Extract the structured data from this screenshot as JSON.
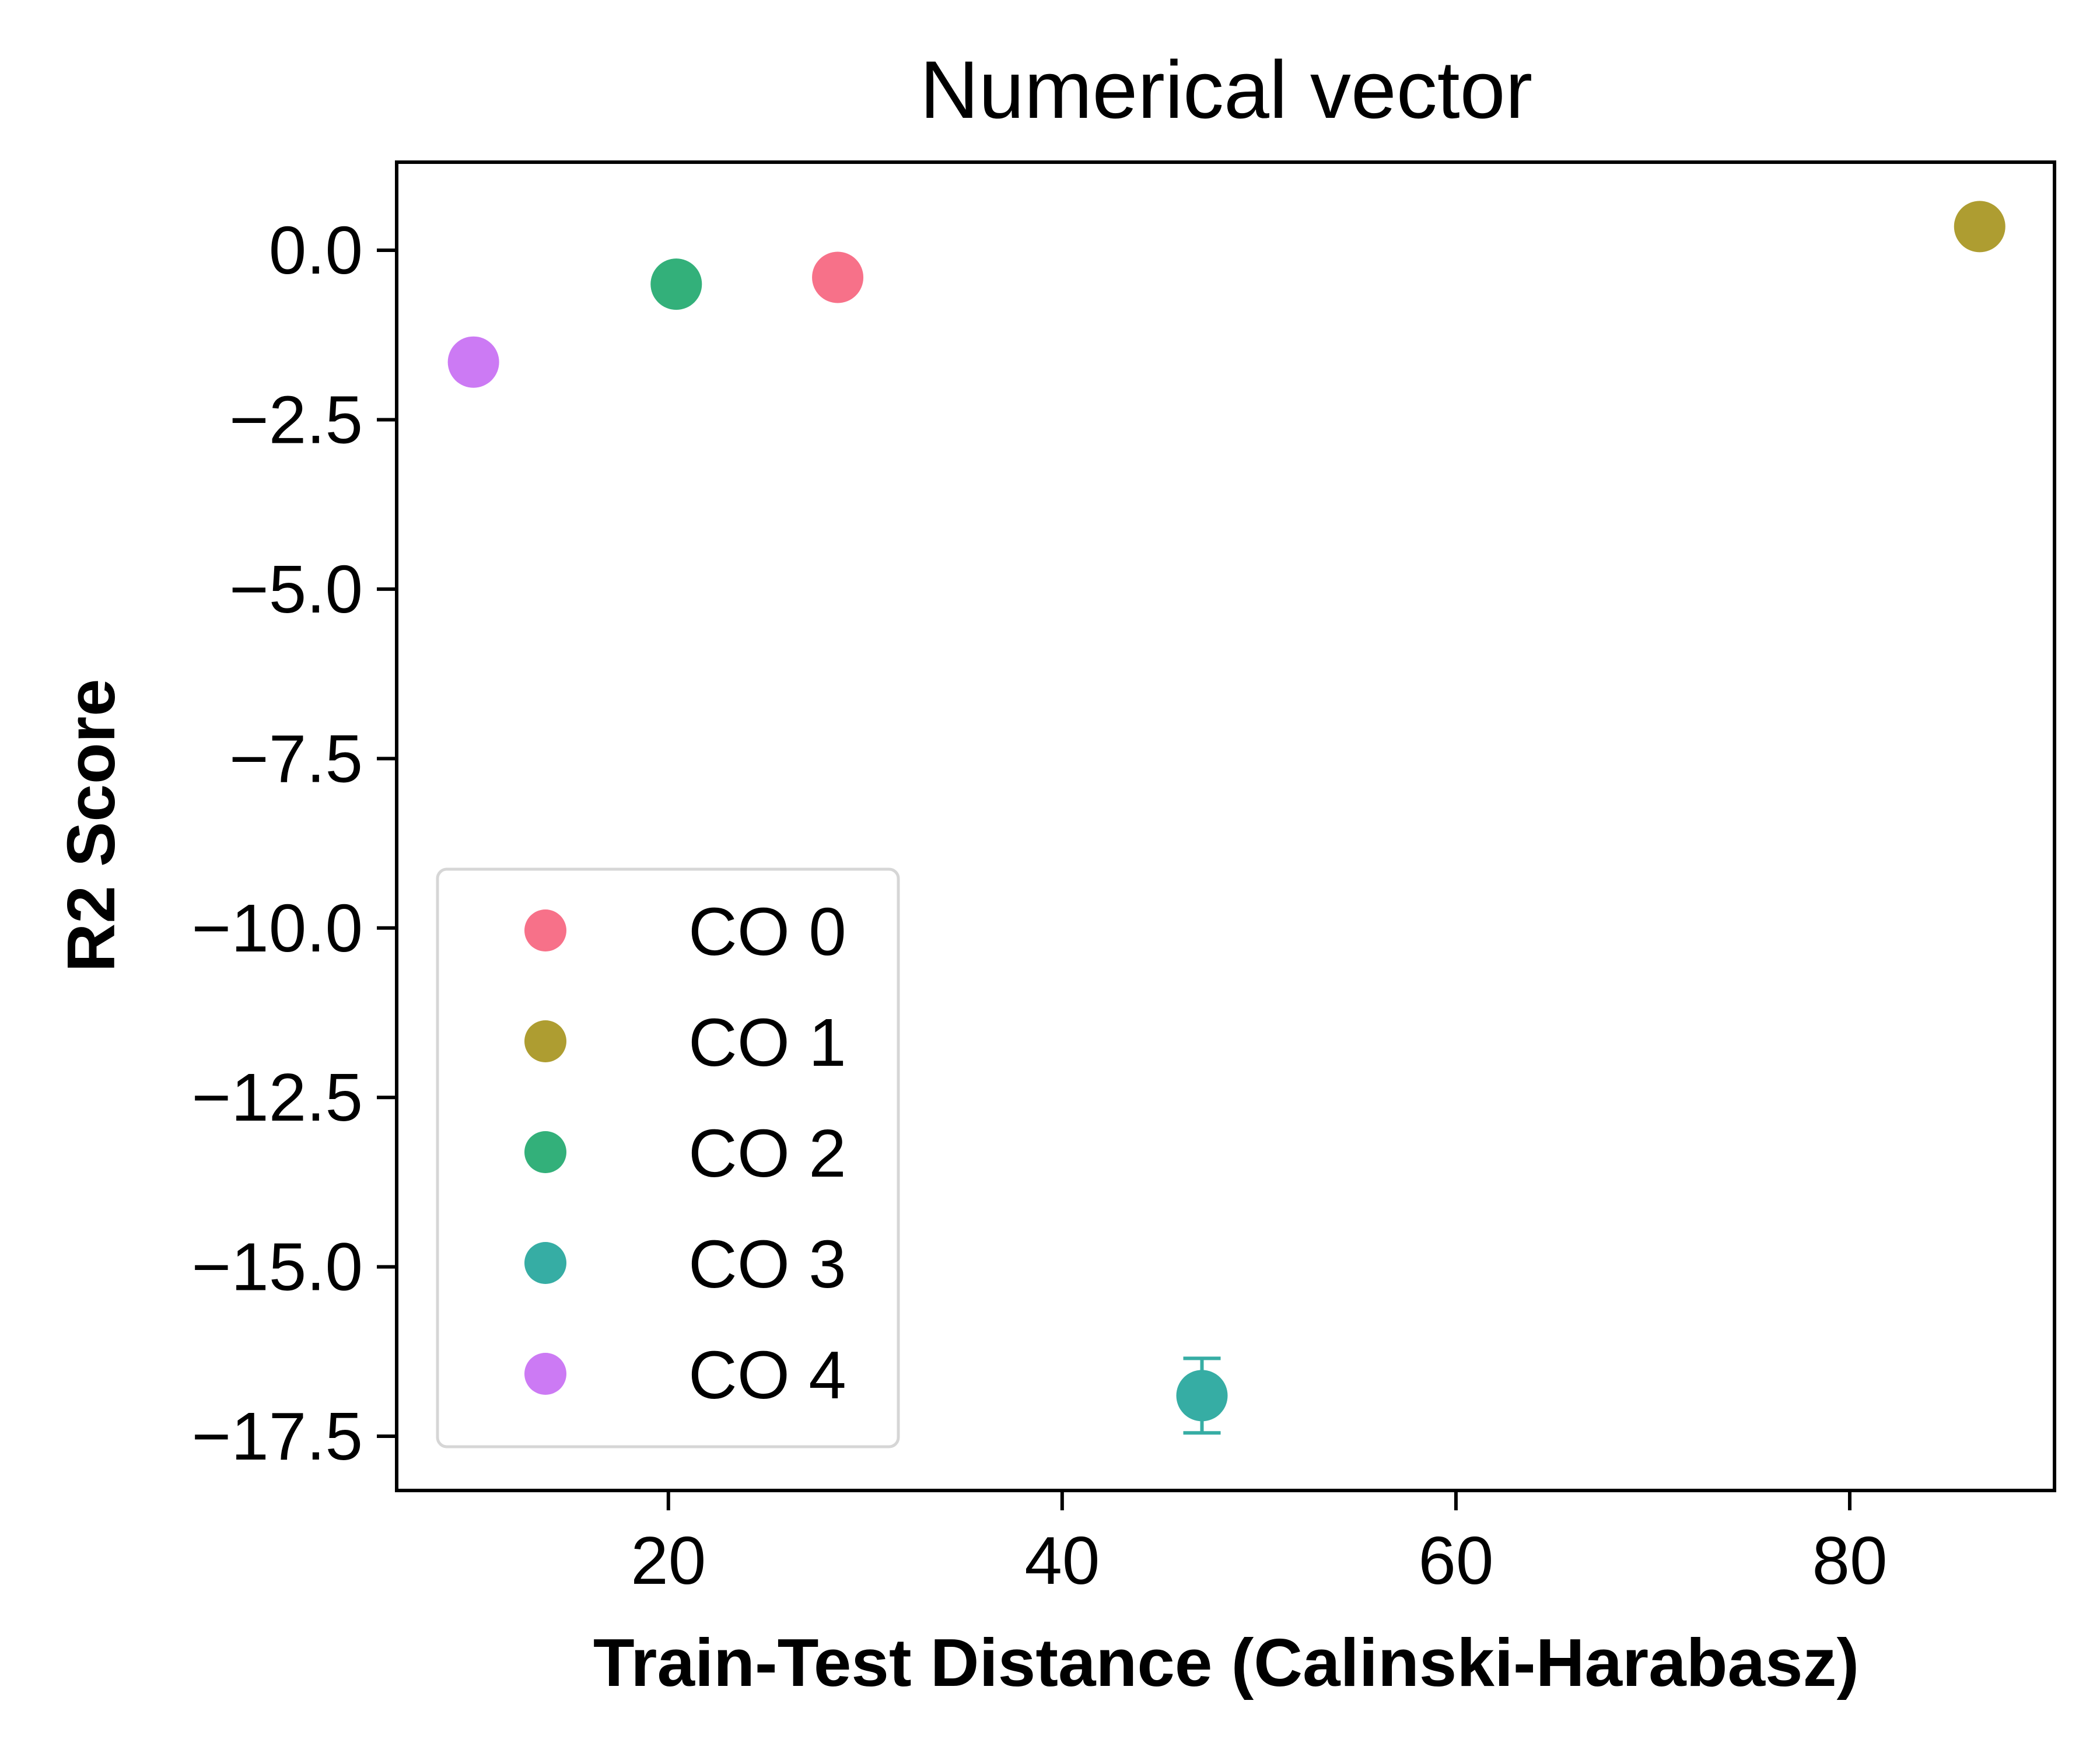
{
  "chart_data": {
    "type": "scatter",
    "title": "Numerical vector",
    "xlabel": "Train-Test Distance (Calinski-Harabasz)",
    "ylabel": "R2 Score",
    "xlim": [
      6.2,
      90.4
    ],
    "ylim": [
      -18.3,
      1.3
    ],
    "xticks": [
      20,
      40,
      60,
      80
    ],
    "yticks": [
      0.0,
      -2.5,
      -5.0,
      -7.5,
      -10.0,
      -12.5,
      -15.0,
      -17.5
    ],
    "xtick_labels": [
      "20",
      "40",
      "60",
      "80"
    ],
    "ytick_labels": [
      "0.0",
      "−2.5",
      "−5.0",
      "−7.5",
      "−10.0",
      "−12.5",
      "−15.0",
      "−17.5"
    ],
    "grid": false,
    "legend_position": "lower-left",
    "series": [
      {
        "name": "CO 0",
        "color": "#f77189",
        "x": [
          28.6
        ],
        "y": [
          -0.4
        ],
        "err": [
          0.06
        ]
      },
      {
        "name": "CO 1",
        "color": "#ae9d31",
        "x": [
          86.6
        ],
        "y": [
          0.35
        ],
        "err": [
          0.06
        ]
      },
      {
        "name": "CO 2",
        "color": "#33b07a",
        "x": [
          20.4
        ],
        "y": [
          -0.5
        ],
        "err": [
          0.06
        ]
      },
      {
        "name": "CO 3",
        "color": "#36ada4",
        "x": [
          47.1
        ],
        "y": [
          -16.9
        ],
        "err": [
          0.55
        ]
      },
      {
        "name": "CO 4",
        "color": "#cc7af4",
        "x": [
          10.1
        ],
        "y": [
          -1.65
        ],
        "err": [
          0.06
        ]
      }
    ]
  }
}
